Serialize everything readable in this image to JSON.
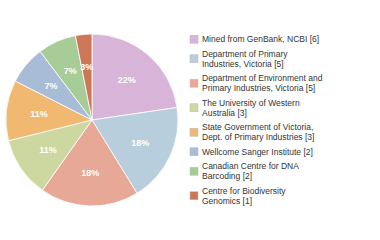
{
  "chart_data": {
    "type": "pie",
    "categories": [
      "Mined from GenBank, NCBI [6]",
      "Department of Primary\nIndustries, Victoria [5]",
      "Department of Environment and\nPrimary Industries, Victoria [5]",
      "The University of Western\nAustralia [3]",
      "State Government of Victoria,\nDept. of Primary Industries [3]",
      "Wellcome Sanger Institute [2]",
      "Canadian Centre for DNA\nBarcoding [2]",
      "Centre for Biodiversity\nGenomics [1]"
    ],
    "values": [
      22,
      18,
      18,
      11,
      11,
      7,
      7,
      3
    ],
    "value_labels": [
      "22%",
      "18%",
      "18%",
      "11%",
      "11%",
      "7%",
      "7%",
      "3%"
    ],
    "colors": [
      "#d8b4d8",
      "#b8cedd",
      "#e8a898",
      "#cdd8a0",
      "#f0b870",
      "#a8bcd8",
      "#a8cc98",
      "#cc7858"
    ],
    "data_labels": true,
    "legend": "right"
  }
}
